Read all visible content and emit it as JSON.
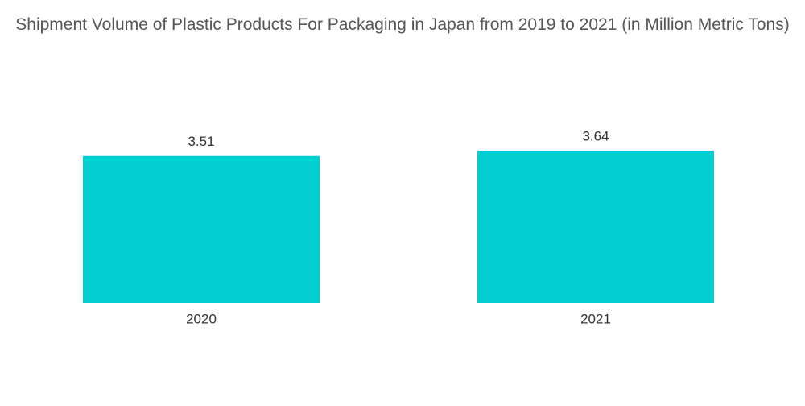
{
  "chart_data": {
    "type": "bar",
    "title": "Shipment Volume of Plastic Products For Packaging in Japan from 2019 to 2021 (in Million Metric Tons)",
    "categories": [
      "2020",
      "2021"
    ],
    "values": [
      3.51,
      3.64
    ],
    "color": "#00ced1"
  }
}
